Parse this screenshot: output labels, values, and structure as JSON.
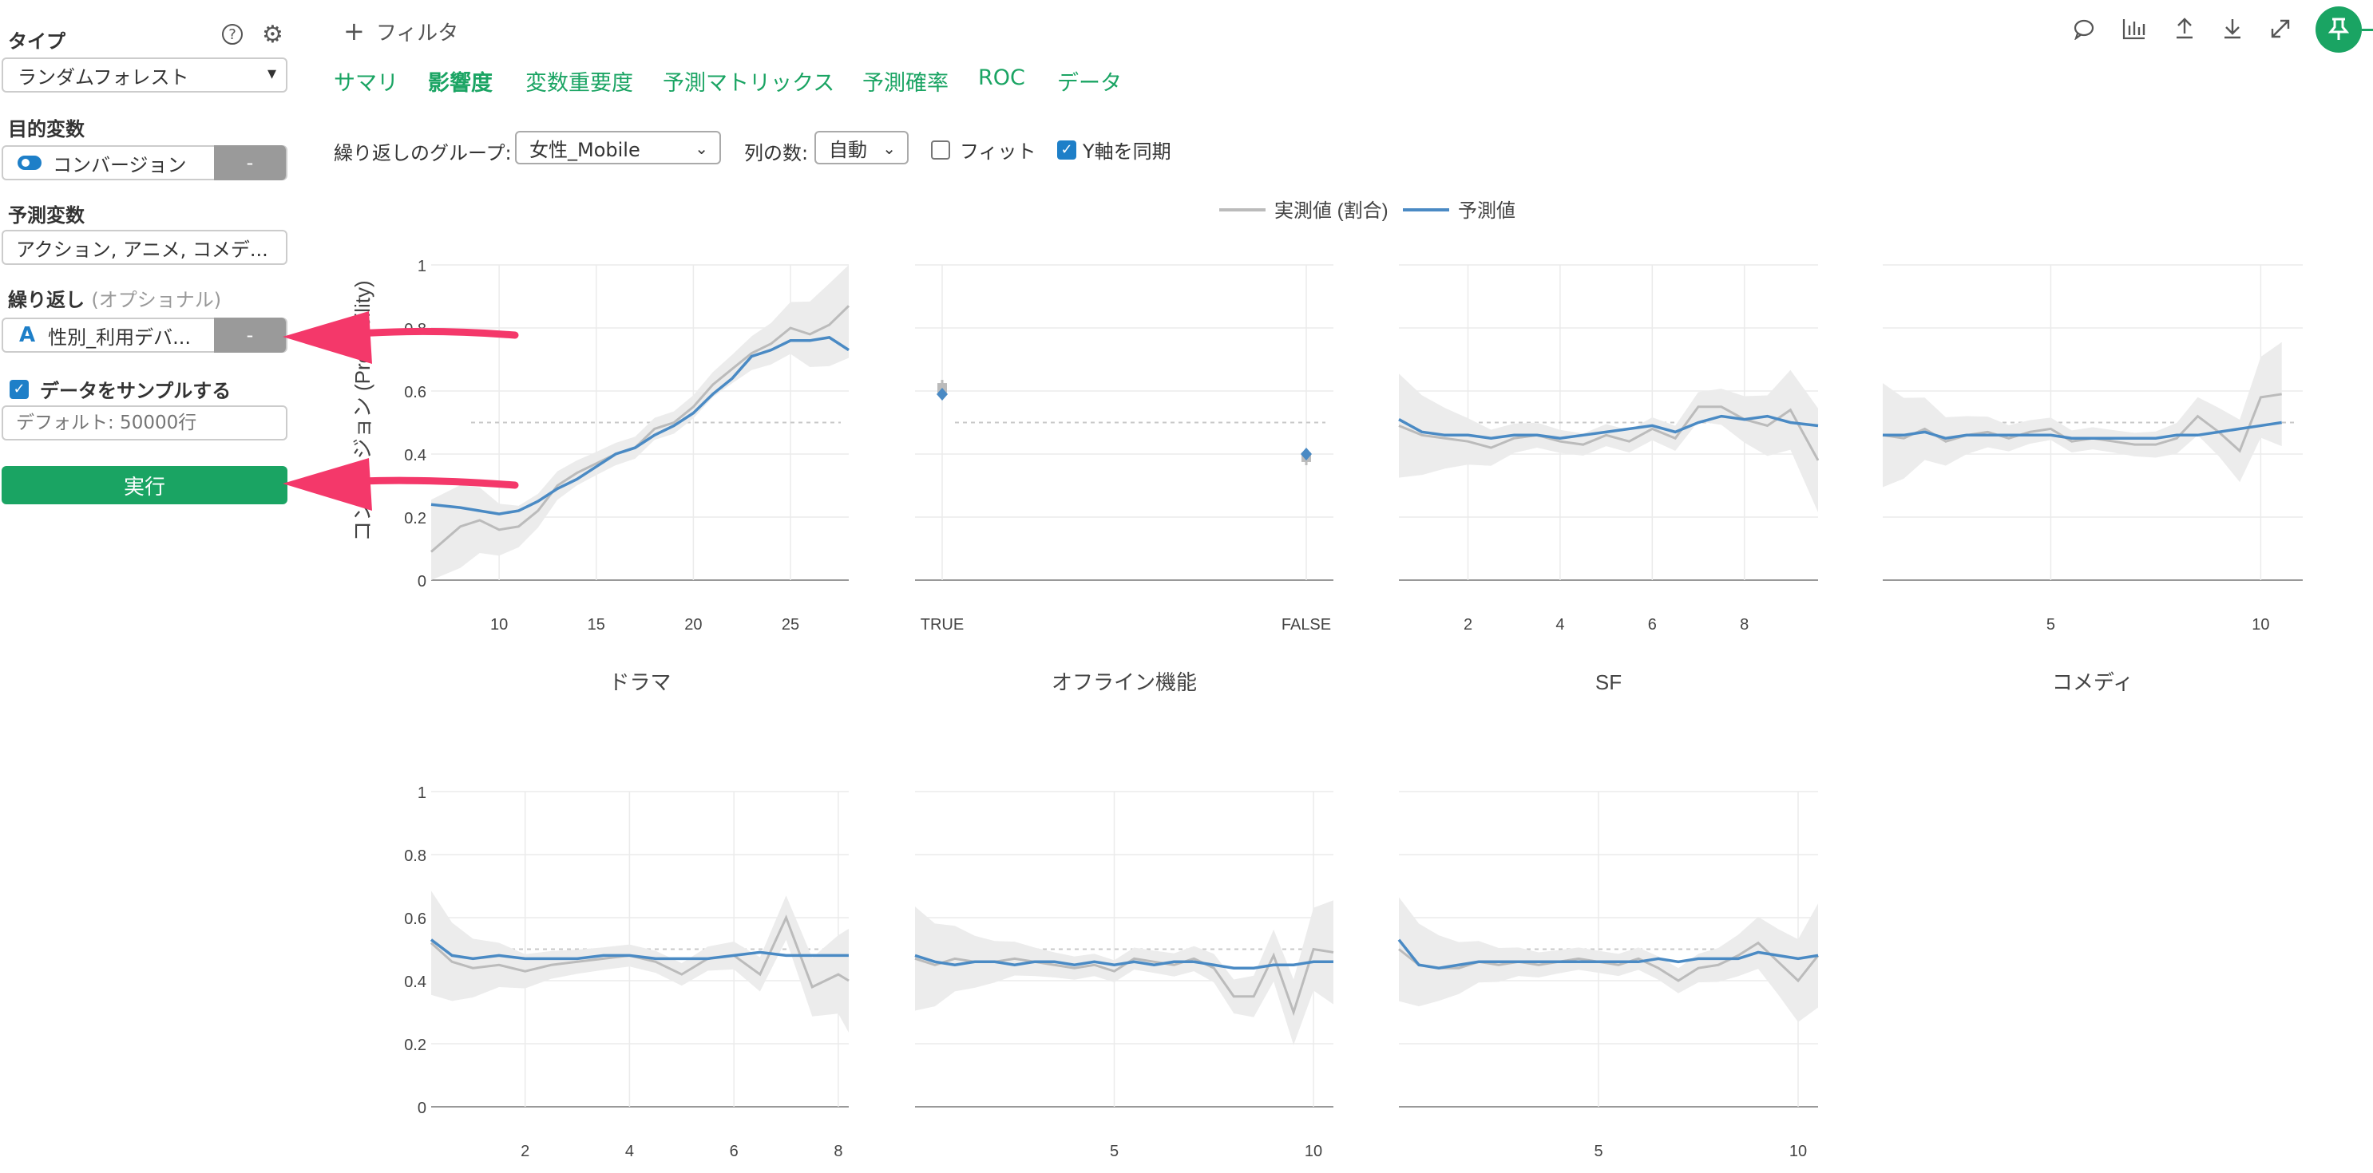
{
  "sidebar": {
    "type_label": "タイプ",
    "type_value": "ランダムフォレスト",
    "target_label": "目的変数",
    "target_value": "コンバージョン",
    "target_btn": "-",
    "predictor_label": "予測変数",
    "predictor_value": "アクション, アニメ, コメデ...",
    "repeat_label": "繰り返し",
    "repeat_optional": "(オプショナル)",
    "repeat_value": "性別_利用デバ...",
    "repeat_btn": "-",
    "repeat_icon_letter": "A",
    "sample_label": "データをサンプルする",
    "sample_placeholder": "デフォルト: 50000行",
    "run_label": "実行"
  },
  "toolbar": {
    "filter_label": "フィルタ",
    "icons": [
      "comment-icon",
      "chart-icon",
      "upload-icon",
      "download-icon",
      "expand-icon",
      "pin-icon"
    ]
  },
  "tabs": [
    "サマリ",
    "影響度",
    "変数重要度",
    "予測マトリックス",
    "予測確率",
    "ROC",
    "データ"
  ],
  "active_tab": "影響度",
  "controls": {
    "group_label": "繰り返しのグループ:",
    "group_value": "女性_Mobile",
    "cols_label": "列の数:",
    "cols_value": "自動",
    "fit_label": "フィット",
    "sync_label": "Y軸を同期"
  },
  "colors": {
    "accent": "#1aa463",
    "predicted": "#4a8ac4",
    "actual": "#bbbbbb",
    "arrow": "#f4386a"
  },
  "chart_data": {
    "type": "line",
    "ylabel": "コンバージョン (Probability)",
    "legend": [
      "実測値 (割合)",
      "予測値"
    ],
    "legend_position": "top-center",
    "ylim": [
      0,
      1
    ],
    "yticks": [
      "0",
      "0.2",
      "0.4",
      "0.6",
      "0.8",
      "1"
    ],
    "baseline": 0.5,
    "panels": [
      {
        "title": "ドラマ",
        "xtype": "num",
        "xlim": [
          6.5,
          28
        ],
        "xticks": [
          10,
          15,
          20,
          25
        ],
        "x": [
          6.5,
          8,
          9,
          10,
          11,
          12,
          13,
          14,
          15,
          16,
          17,
          18,
          19,
          20,
          21,
          22,
          23,
          24,
          25,
          26,
          27,
          28
        ],
        "actual": [
          0.09,
          0.17,
          0.19,
          0.16,
          0.17,
          0.22,
          0.3,
          0.34,
          0.37,
          0.4,
          0.42,
          0.48,
          0.5,
          0.55,
          0.62,
          0.67,
          0.72,
          0.75,
          0.8,
          0.78,
          0.81,
          0.87
        ],
        "predicted": [
          0.24,
          0.23,
          0.22,
          0.21,
          0.22,
          0.25,
          0.29,
          0.32,
          0.36,
          0.4,
          0.42,
          0.46,
          0.49,
          0.53,
          0.59,
          0.64,
          0.71,
          0.73,
          0.76,
          0.76,
          0.77,
          0.73
        ]
      },
      {
        "title": "オフライン機能",
        "xtype": "cat",
        "categories": [
          "TRUE",
          "FALSE"
        ],
        "actual": [
          0.61,
          0.39
        ],
        "predicted": [
          0.59,
          0.4
        ]
      },
      {
        "title": "SF",
        "xtype": "num",
        "xlim": [
          0.5,
          9.6
        ],
        "xticks": [
          2,
          4,
          6,
          8
        ],
        "x": [
          0.5,
          1,
          1.5,
          2,
          2.5,
          3,
          3.5,
          4,
          4.5,
          5,
          5.5,
          6,
          6.5,
          7,
          7.5,
          8,
          8.5,
          9,
          9.6
        ],
        "actual": [
          0.49,
          0.46,
          0.45,
          0.44,
          0.42,
          0.45,
          0.46,
          0.44,
          0.43,
          0.46,
          0.44,
          0.48,
          0.45,
          0.55,
          0.55,
          0.51,
          0.49,
          0.54,
          0.38
        ],
        "predicted": [
          0.51,
          0.47,
          0.46,
          0.46,
          0.45,
          0.46,
          0.46,
          0.45,
          0.46,
          0.47,
          0.48,
          0.49,
          0.47,
          0.5,
          0.52,
          0.51,
          0.52,
          0.5,
          0.49
        ]
      },
      {
        "title": "コメディ",
        "xtype": "num",
        "xlim": [
          1,
          11
        ],
        "xticks": [
          5,
          10
        ],
        "x": [
          1,
          1.5,
          2,
          2.5,
          3,
          3.5,
          4,
          4.5,
          5,
          5.5,
          6,
          6.5,
          7,
          7.5,
          8,
          8.5,
          9,
          9.5,
          10,
          10.5
        ],
        "actual": [
          0.46,
          0.45,
          0.48,
          0.44,
          0.46,
          0.47,
          0.45,
          0.47,
          0.48,
          0.44,
          0.45,
          0.44,
          0.43,
          0.43,
          0.45,
          0.52,
          0.47,
          0.41,
          0.58,
          0.59
        ],
        "predicted": [
          0.46,
          0.46,
          0.47,
          0.45,
          0.46,
          0.46,
          0.46,
          0.46,
          0.46,
          0.45,
          0.45,
          0.45,
          0.45,
          0.45,
          0.46,
          0.46,
          0.47,
          0.48,
          0.49,
          0.5
        ]
      },
      {
        "title": "",
        "xtype": "num",
        "xlim": [
          0.2,
          8.2
        ],
        "xticks": [
          2,
          4,
          6,
          8
        ],
        "x": [
          0.2,
          0.6,
          1,
          1.5,
          2,
          2.5,
          3,
          3.5,
          4,
          4.5,
          5,
          5.5,
          6,
          6.5,
          7,
          7.5,
          8,
          8.2
        ],
        "actual": [
          0.52,
          0.46,
          0.44,
          0.45,
          0.43,
          0.45,
          0.46,
          0.47,
          0.48,
          0.46,
          0.42,
          0.47,
          0.48,
          0.42,
          0.6,
          0.38,
          0.42,
          0.4
        ],
        "predicted": [
          0.53,
          0.48,
          0.47,
          0.48,
          0.47,
          0.47,
          0.47,
          0.48,
          0.48,
          0.47,
          0.47,
          0.47,
          0.48,
          0.49,
          0.48,
          0.48,
          0.48,
          0.48
        ]
      },
      {
        "title": "",
        "xtype": "num",
        "xlim": [
          0,
          10.5
        ],
        "xticks": [
          5,
          10
        ],
        "x": [
          0,
          0.5,
          1,
          1.5,
          2,
          2.5,
          3,
          3.5,
          4,
          4.5,
          5,
          5.5,
          6,
          6.5,
          7,
          7.5,
          8,
          8.5,
          9,
          9.5,
          10,
          10.5
        ],
        "actual": [
          0.47,
          0.45,
          0.47,
          0.46,
          0.46,
          0.47,
          0.46,
          0.45,
          0.44,
          0.45,
          0.43,
          0.47,
          0.46,
          0.45,
          0.47,
          0.44,
          0.35,
          0.35,
          0.48,
          0.3,
          0.5,
          0.49
        ],
        "predicted": [
          0.48,
          0.46,
          0.45,
          0.46,
          0.46,
          0.45,
          0.46,
          0.46,
          0.45,
          0.46,
          0.45,
          0.46,
          0.45,
          0.46,
          0.46,
          0.45,
          0.44,
          0.44,
          0.45,
          0.45,
          0.46,
          0.46
        ]
      },
      {
        "title": "",
        "xtype": "num",
        "xlim": [
          0,
          10.5
        ],
        "xticks": [
          5,
          10
        ],
        "x": [
          0,
          0.5,
          1,
          1.5,
          2,
          2.5,
          3,
          3.5,
          4,
          4.5,
          5,
          5.5,
          6,
          6.5,
          7,
          7.5,
          8,
          8.5,
          9,
          9.5,
          10,
          10.5
        ],
        "actual": [
          0.5,
          0.45,
          0.44,
          0.44,
          0.46,
          0.45,
          0.46,
          0.45,
          0.46,
          0.47,
          0.46,
          0.45,
          0.47,
          0.44,
          0.4,
          0.44,
          0.45,
          0.48,
          0.52,
          0.46,
          0.4,
          0.48
        ],
        "predicted": [
          0.53,
          0.45,
          0.44,
          0.45,
          0.46,
          0.46,
          0.46,
          0.46,
          0.46,
          0.46,
          0.46,
          0.46,
          0.46,
          0.47,
          0.46,
          0.47,
          0.47,
          0.47,
          0.49,
          0.48,
          0.47,
          0.48
        ]
      }
    ]
  }
}
